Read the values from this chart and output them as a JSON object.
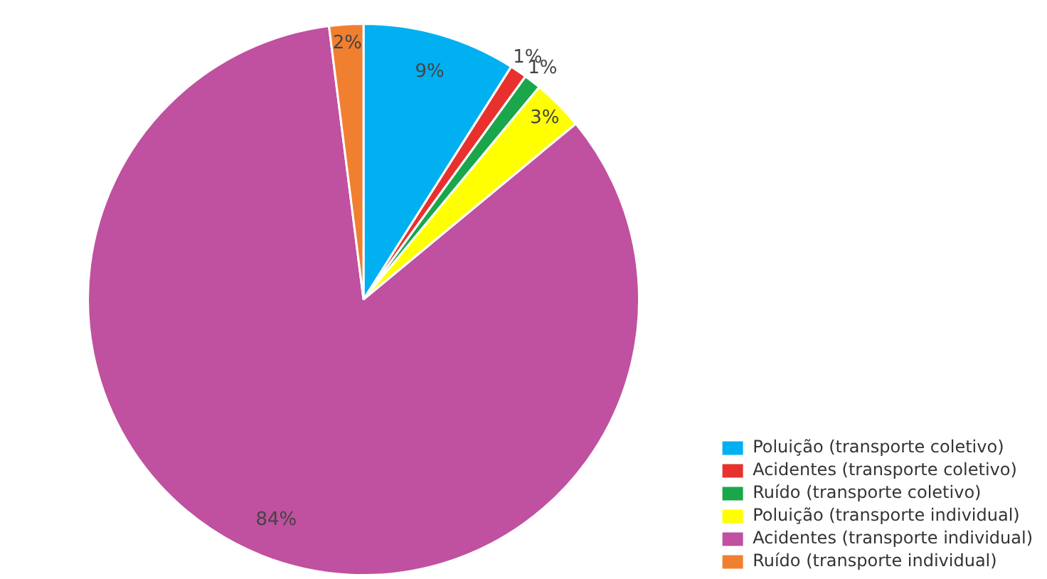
{
  "chart_data": {
    "type": "pie",
    "categories": [
      "Poluição (transporte coletivo)",
      "Acidentes (transporte coletivo)",
      "Ruído (transporte coletivo)",
      "Poluição (transporte individual)",
      "Acidentes (transporte individual)",
      "Ruído (transporte individual)"
    ],
    "values": [
      9,
      1,
      1,
      3,
      84,
      2
    ],
    "colors": [
      "#00b0f0",
      "#e8312f",
      "#1aa64a",
      "#ffff00",
      "#c050a0",
      "#f07f30"
    ],
    "value_labels": [
      "9%",
      "1%",
      "1%",
      "3%",
      "84%",
      "2%"
    ],
    "legend": "bottom right"
  }
}
